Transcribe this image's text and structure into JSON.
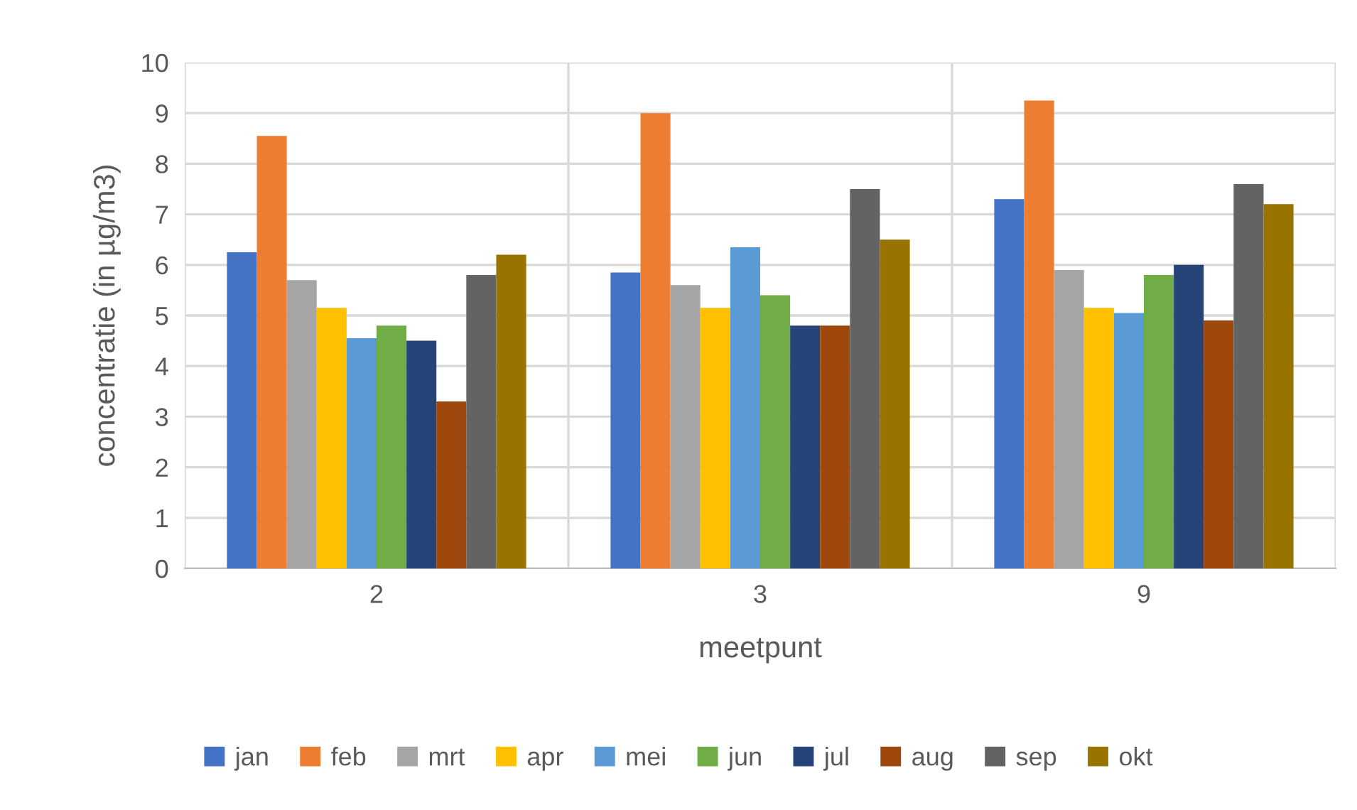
{
  "chart_data": {
    "type": "bar",
    "xlabel": "meetpunt",
    "ylabel": "concentratie (in µg/m3)",
    "categories": [
      "2",
      "3",
      "9"
    ],
    "series": [
      {
        "name": "jan",
        "color": "#4472c4",
        "values": [
          6.25,
          5.85,
          7.3
        ]
      },
      {
        "name": "feb",
        "color": "#ed7d31",
        "values": [
          8.55,
          9.0,
          9.25
        ]
      },
      {
        "name": "mrt",
        "color": "#a5a5a5",
        "values": [
          5.7,
          5.6,
          5.9
        ]
      },
      {
        "name": "apr",
        "color": "#ffc000",
        "values": [
          5.15,
          5.15,
          5.15
        ]
      },
      {
        "name": "mei",
        "color": "#5b9bd5",
        "values": [
          4.55,
          6.35,
          5.05
        ]
      },
      {
        "name": "jun",
        "color": "#70ad47",
        "values": [
          4.8,
          5.4,
          5.8
        ]
      },
      {
        "name": "jul",
        "color": "#264478",
        "values": [
          4.5,
          4.8,
          6.0
        ]
      },
      {
        "name": "aug",
        "color": "#9e480e",
        "values": [
          3.3,
          4.8,
          4.9
        ]
      },
      {
        "name": "sep",
        "color": "#636363",
        "values": [
          5.8,
          7.5,
          7.6
        ]
      },
      {
        "name": "okt",
        "color": "#997300",
        "values": [
          6.2,
          6.5,
          7.2
        ]
      }
    ],
    "ylim": [
      0,
      10
    ],
    "yticks": [
      0,
      1,
      2,
      3,
      4,
      5,
      6,
      7,
      8,
      9,
      10
    ],
    "grid": true,
    "legend": "bottom"
  }
}
